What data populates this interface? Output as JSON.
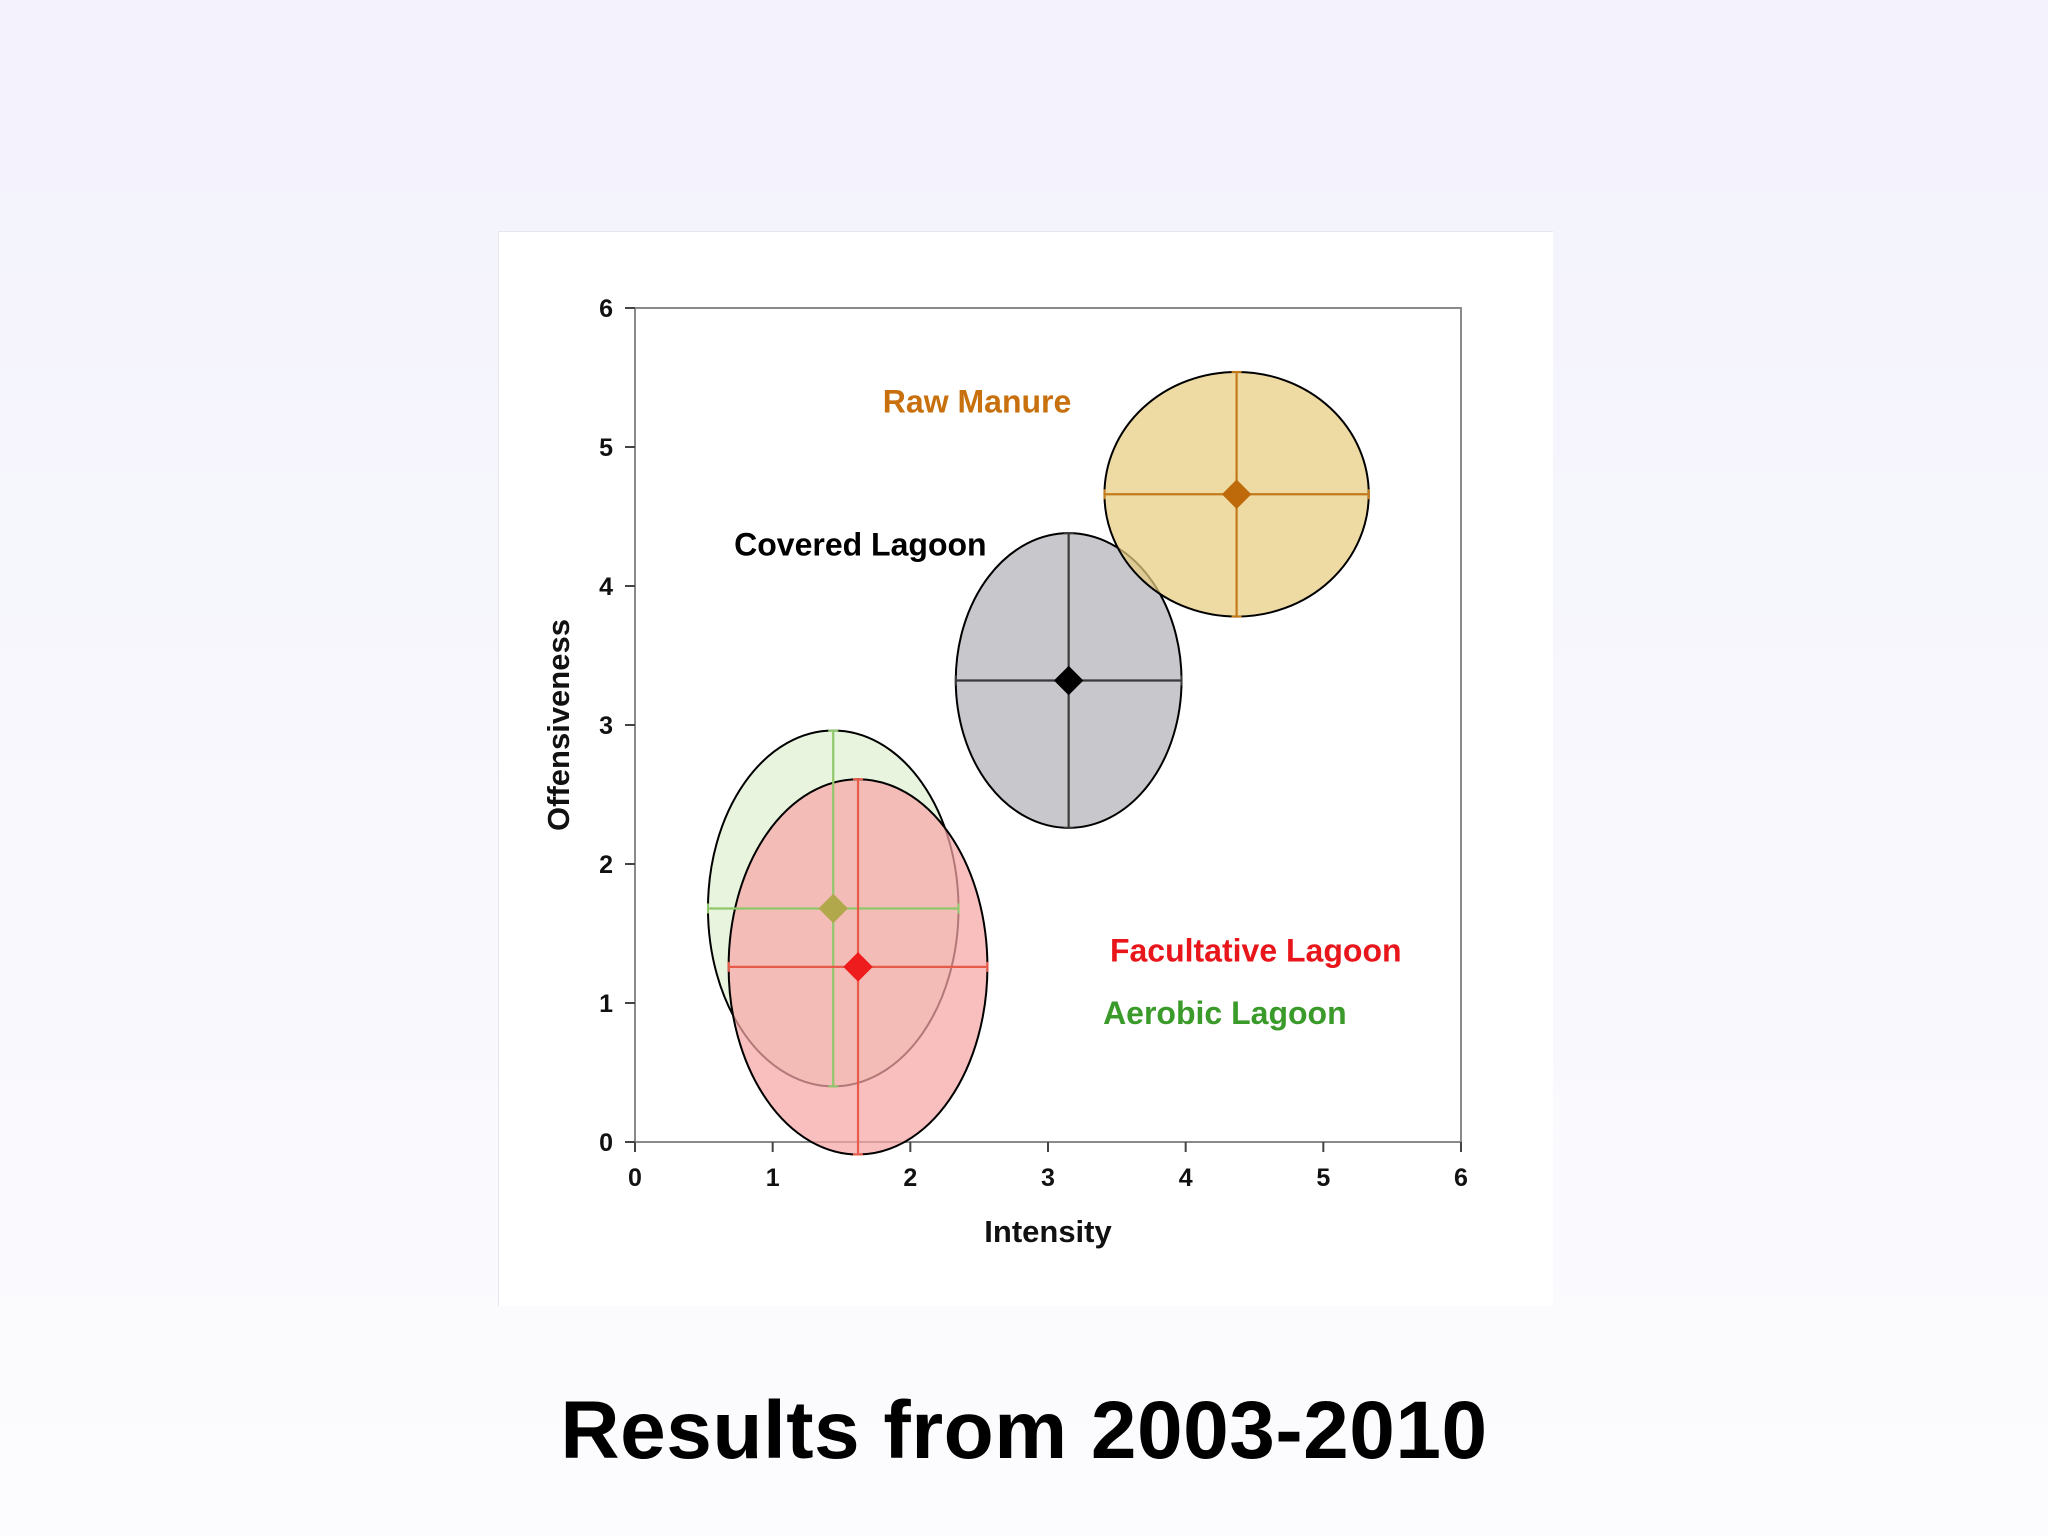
{
  "slide": {
    "title": "Results from 2003-2010"
  },
  "chart_data": {
    "type": "scatter",
    "title": "",
    "xlabel": "Intensity",
    "ylabel": "Offensiveness",
    "xlim": [
      0,
      6
    ],
    "ylim": [
      0,
      6
    ],
    "x_ticks": [
      "0",
      "1",
      "2",
      "3",
      "4",
      "5",
      "6"
    ],
    "y_ticks": [
      "0",
      "1",
      "2",
      "3",
      "4",
      "5",
      "6"
    ],
    "grid": false,
    "series": [
      {
        "name": "Aerobic Lagoon",
        "x": 1.44,
        "y": 1.68,
        "x_err": 0.91,
        "y_err": 1.28,
        "point_color": "#b0a84a",
        "fill": "#dff0d0",
        "line_color": "#8fc86a",
        "label_color": "#3a9a2a",
        "label_pos": [
          3.4,
          0.85
        ]
      },
      {
        "name": "Facultative Lagoon",
        "x": 1.62,
        "y": 1.26,
        "x_err": 0.94,
        "y_err": 1.35,
        "point_color": "#ee1c1c",
        "fill": "#f7a6a6",
        "line_color": "#e85a4a",
        "label_color": "#e8151b",
        "label_pos": [
          3.45,
          1.3
        ]
      },
      {
        "name": "Covered Lagoon",
        "x": 3.15,
        "y": 3.32,
        "x_err": 0.82,
        "y_err": 1.06,
        "point_color": "#000000",
        "fill": "#b2b2b8",
        "line_color": "#3a3a3a",
        "label_color": "#000000",
        "label_pos": [
          0.72,
          4.22
        ]
      },
      {
        "name": "Raw Manure",
        "x": 4.37,
        "y": 4.66,
        "x_err": 0.96,
        "y_err": 0.88,
        "point_color": "#bf6a0a",
        "fill": "#e8cc80",
        "line_color": "#c47a1a",
        "label_color": "#c7700d",
        "label_pos": [
          1.8,
          5.25
        ]
      }
    ]
  }
}
